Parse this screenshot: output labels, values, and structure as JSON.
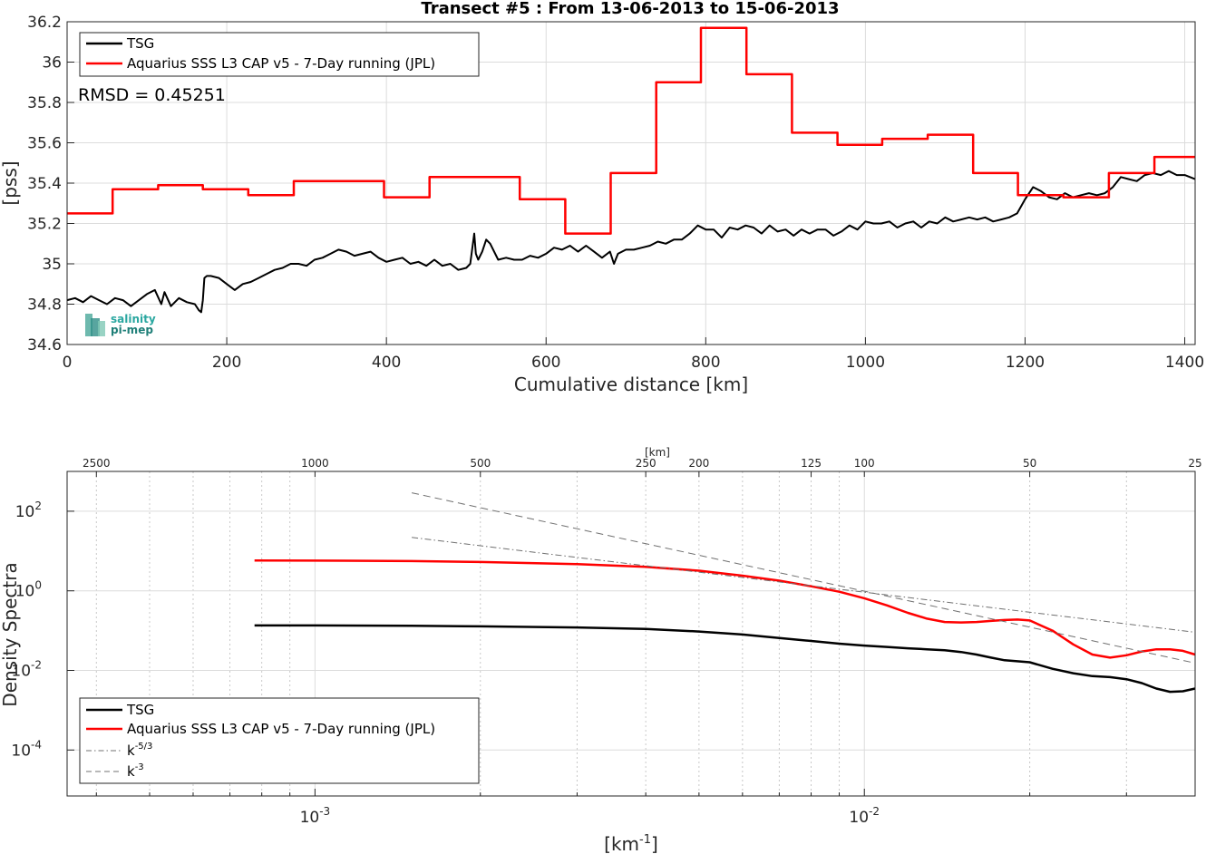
{
  "chart_data": [
    {
      "type": "line",
      "title": "Transect #5 : From 13-06-2013 to 15-06-2013",
      "xlabel": "Cumulative distance [km]",
      "ylabel": "[pss]",
      "xlim": [
        0,
        1413
      ],
      "ylim": [
        34.6,
        36.2
      ],
      "xticks": [
        0,
        200,
        400,
        600,
        800,
        1000,
        1200,
        1400
      ],
      "yticks": [
        34.6,
        34.8,
        35,
        35.2,
        35.4,
        35.6,
        35.8,
        36,
        36.2
      ],
      "grid": true,
      "legend_position": "top-left",
      "annotation": "RMSD = 0.45251",
      "logo_text": [
        "salinity",
        "pi-mep"
      ],
      "series": [
        {
          "name": "TSG",
          "color": "#000000",
          "x": [
            0,
            10,
            20,
            30,
            40,
            50,
            60,
            70,
            80,
            90,
            100,
            110,
            118,
            122,
            130,
            140,
            150,
            160,
            165,
            168,
            170,
            172,
            175,
            180,
            190,
            200,
            210,
            220,
            230,
            240,
            250,
            260,
            270,
            280,
            290,
            300,
            310,
            320,
            330,
            340,
            350,
            360,
            370,
            380,
            390,
            400,
            410,
            420,
            430,
            440,
            450,
            460,
            470,
            480,
            490,
            500,
            505,
            510,
            512,
            515,
            520,
            525,
            530,
            540,
            550,
            560,
            570,
            580,
            590,
            600,
            610,
            620,
            630,
            640,
            650,
            660,
            670,
            680,
            685,
            690,
            700,
            710,
            720,
            730,
            740,
            750,
            760,
            770,
            780,
            790,
            800,
            810,
            820,
            830,
            840,
            850,
            860,
            870,
            880,
            890,
            900,
            910,
            920,
            930,
            940,
            950,
            960,
            970,
            980,
            990,
            1000,
            1010,
            1020,
            1030,
            1040,
            1050,
            1060,
            1070,
            1080,
            1090,
            1100,
            1110,
            1120,
            1130,
            1140,
            1150,
            1160,
            1170,
            1180,
            1190,
            1200,
            1210,
            1220,
            1230,
            1240,
            1250,
            1260,
            1270,
            1280,
            1290,
            1300,
            1310,
            1320,
            1330,
            1340,
            1350,
            1360,
            1370,
            1380,
            1390,
            1400,
            1413
          ],
          "y": [
            34.82,
            34.83,
            34.81,
            34.84,
            34.82,
            34.8,
            34.83,
            34.82,
            34.79,
            34.82,
            34.85,
            34.87,
            34.8,
            34.86,
            34.79,
            34.83,
            34.81,
            34.8,
            34.77,
            34.76,
            34.82,
            34.93,
            34.94,
            34.94,
            34.93,
            34.9,
            34.87,
            34.9,
            34.91,
            34.93,
            34.95,
            34.97,
            34.98,
            35.0,
            35.0,
            34.99,
            35.02,
            35.03,
            35.05,
            35.07,
            35.06,
            35.04,
            35.05,
            35.06,
            35.03,
            35.01,
            35.02,
            35.03,
            35.0,
            35.01,
            34.99,
            35.02,
            34.99,
            35.0,
            34.97,
            34.98,
            35.0,
            35.15,
            35.05,
            35.02,
            35.06,
            35.12,
            35.1,
            35.02,
            35.03,
            35.02,
            35.02,
            35.04,
            35.03,
            35.05,
            35.08,
            35.07,
            35.09,
            35.06,
            35.09,
            35.06,
            35.03,
            35.06,
            35.0,
            35.05,
            35.07,
            35.07,
            35.08,
            35.09,
            35.11,
            35.1,
            35.12,
            35.12,
            35.15,
            35.19,
            35.17,
            35.17,
            35.13,
            35.18,
            35.17,
            35.19,
            35.18,
            35.15,
            35.19,
            35.16,
            35.17,
            35.14,
            35.17,
            35.15,
            35.17,
            35.17,
            35.14,
            35.16,
            35.19,
            35.17,
            35.21,
            35.2,
            35.2,
            35.21,
            35.18,
            35.2,
            35.21,
            35.18,
            35.21,
            35.2,
            35.23,
            35.21,
            35.22,
            35.23,
            35.22,
            35.23,
            35.21,
            35.22,
            35.23,
            35.25,
            35.32,
            35.38,
            35.36,
            35.33,
            35.32,
            35.35,
            35.33,
            35.34,
            35.35,
            35.34,
            35.35,
            35.38,
            35.43,
            35.42,
            35.41,
            35.44,
            35.45,
            35.44,
            35.46,
            35.44,
            35.44,
            35.42
          ]
        },
        {
          "name": "Aquarius SSS L3 CAP v5 - 7-Day running (JPL)",
          "color": "#ff0000",
          "x": [
            0,
            57,
            57,
            114,
            114,
            170,
            170,
            227,
            227,
            284,
            284,
            397,
            397,
            454,
            454,
            567,
            567,
            624,
            624,
            681,
            681,
            738,
            738,
            794,
            794,
            851,
            851,
            908,
            908,
            965,
            965,
            1021,
            1021,
            1078,
            1078,
            1135,
            1135,
            1191,
            1191,
            1248,
            1248,
            1305,
            1305,
            1362,
            1362,
            1413
          ],
          "y": [
            35.25,
            35.25,
            35.37,
            35.37,
            35.39,
            35.39,
            35.37,
            35.37,
            35.34,
            35.34,
            35.41,
            35.41,
            35.33,
            35.33,
            35.43,
            35.43,
            35.32,
            35.32,
            35.15,
            35.15,
            35.45,
            35.45,
            35.9,
            35.9,
            36.17,
            36.17,
            35.94,
            35.94,
            35.65,
            35.65,
            35.59,
            35.59,
            35.62,
            35.62,
            35.64,
            35.64,
            35.45,
            35.45,
            35.34,
            35.34,
            35.33,
            35.33,
            35.45,
            35.45,
            35.53,
            35.53
          ]
        }
      ]
    },
    {
      "type": "line",
      "title": "",
      "xlabel": "[km",
      "xlabel_sup": "-1",
      "xlabel_end": "]",
      "ylabel": "Density Spectra",
      "x_scale": "log",
      "y_scale": "log",
      "xlim": [
        0.0003538,
        0.04
      ],
      "ylim": [
        7e-06,
        1000
      ],
      "xticks": [
        {
          "value": 0.001,
          "base": "10",
          "exp": "-3"
        },
        {
          "value": 0.01,
          "base": "10",
          "exp": "-2"
        }
      ],
      "yticks": [
        {
          "value": 0.0001,
          "base": "10",
          "exp": "-4"
        },
        {
          "value": 0.01,
          "base": "10",
          "exp": "-2"
        },
        {
          "value": 1,
          "base": "10",
          "exp": "0"
        },
        {
          "value": 100,
          "base": "10",
          "exp": "2"
        }
      ],
      "top_axis_label": "[km]",
      "top_ticks": [
        2500,
        1000,
        500,
        250,
        200,
        125,
        100,
        50,
        25
      ],
      "grid": true,
      "legend_position": "bottom-left",
      "series": [
        {
          "name": "TSG",
          "color": "#000000",
          "x": [
            0.000776,
            0.001,
            0.0015,
            0.002,
            0.003,
            0.004,
            0.005,
            0.006,
            0.007,
            0.008,
            0.009,
            0.01,
            0.011,
            0.012,
            0.013,
            0.014,
            0.015,
            0.016,
            0.017,
            0.018,
            0.02,
            0.022,
            0.024,
            0.026,
            0.028,
            0.03,
            0.032,
            0.034,
            0.036,
            0.038,
            0.04
          ],
          "y": [
            0.135,
            0.135,
            0.133,
            0.128,
            0.12,
            0.11,
            0.095,
            0.08,
            0.065,
            0.055,
            0.047,
            0.042,
            0.039,
            0.036,
            0.034,
            0.032,
            0.029,
            0.025,
            0.021,
            0.018,
            0.016,
            0.011,
            0.0085,
            0.0072,
            0.0068,
            0.006,
            0.0048,
            0.0035,
            0.0029,
            0.003,
            0.0035
          ]
        },
        {
          "name": "Aquarius SSS L3 CAP v5 - 7-Day running (JPL)",
          "color": "#ff0000",
          "x": [
            0.000776,
            0.001,
            0.0015,
            0.002,
            0.003,
            0.004,
            0.005,
            0.006,
            0.007,
            0.008,
            0.009,
            0.01,
            0.011,
            0.012,
            0.013,
            0.014,
            0.015,
            0.016,
            0.017,
            0.018,
            0.019,
            0.02,
            0.022,
            0.024,
            0.026,
            0.028,
            0.03,
            0.032,
            0.034,
            0.036,
            0.038,
            0.04
          ],
          "y": [
            5.8,
            5.75,
            5.6,
            5.3,
            4.7,
            4.0,
            3.2,
            2.4,
            1.8,
            1.3,
            0.95,
            0.65,
            0.43,
            0.28,
            0.2,
            0.165,
            0.16,
            0.165,
            0.175,
            0.185,
            0.19,
            0.18,
            0.1,
            0.045,
            0.025,
            0.021,
            0.024,
            0.03,
            0.034,
            0.034,
            0.031,
            0.025
          ]
        },
        {
          "name": "k",
          "name_sup": "-5/3",
          "color": "#707070",
          "dash": "dashdot",
          "x": [
            0.0015,
            0.04
          ],
          "y": [
            22,
            0.091
          ]
        },
        {
          "name": "k",
          "name_sup": "-3",
          "color": "#707070",
          "dash": "dashed",
          "x": [
            0.0015,
            0.04
          ],
          "y": [
            290,
            0.0153
          ]
        }
      ]
    }
  ]
}
